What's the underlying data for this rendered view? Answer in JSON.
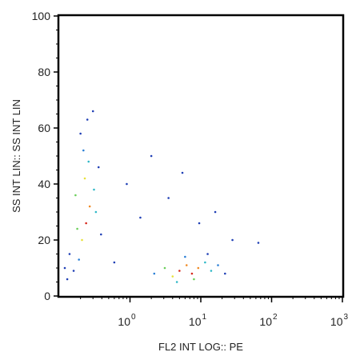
{
  "chart_data": {
    "type": "scatter",
    "title": "",
    "xlabel": "FL2 INT LOG:: PE",
    "ylabel": "SS INT LIN:: SS INT LIN",
    "x_scale": "log",
    "xlim": [
      0.1,
      1000
    ],
    "ylim": [
      0,
      100
    ],
    "x_ticks": [
      {
        "value": 1,
        "base": "10",
        "exp": "0"
      },
      {
        "value": 10,
        "base": "10",
        "exp": "1"
      },
      {
        "value": 100,
        "base": "10",
        "exp": "2"
      },
      {
        "value": 1000,
        "base": "10",
        "exp": "3"
      }
    ],
    "y_ticks": [
      "0",
      "20",
      "40",
      "60",
      "80",
      "100"
    ],
    "grid": false,
    "color_encoding": "density (blue low to red high)",
    "density_colors": [
      "#1f3fb5",
      "#2a7fd6",
      "#2fb8c7",
      "#6bcf5a",
      "#e8e23a",
      "#f08a24",
      "#d7261b"
    ],
    "series": [
      {
        "points_x": [
          0.13,
          0.16,
          0.19,
          0.21,
          0.24,
          0.27,
          0.31,
          0.36,
          0.22,
          0.2,
          0.25,
          0.3,
          0.12,
          0.14,
          0.18,
          0.17,
          0.23,
          0.26,
          0.33,
          0.39
        ],
        "points_y": [
          6,
          9,
          13,
          20,
          26,
          32,
          38,
          46,
          52,
          58,
          63,
          66,
          10,
          15,
          24,
          36,
          42,
          48,
          30,
          22
        ]
      },
      {
        "points_x": [
          2.2,
          3.1,
          4.0,
          5.0,
          6.3,
          7.5,
          9.2,
          11.5,
          14.0,
          17.5,
          22.0,
          4.6,
          6.0,
          8.0,
          12.5
        ],
        "points_y": [
          8,
          10,
          7,
          9,
          11,
          8,
          10,
          12,
          9,
          11,
          8,
          5,
          14,
          6,
          15
        ]
      },
      {
        "points_x": [
          0.6,
          0.9,
          1.4,
          2.0,
          3.5,
          5.5,
          9.5,
          16.0,
          28.0,
          65.0
        ],
        "points_y": [
          12,
          40,
          28,
          50,
          35,
          44,
          26,
          30,
          20,
          19
        ]
      }
    ]
  }
}
